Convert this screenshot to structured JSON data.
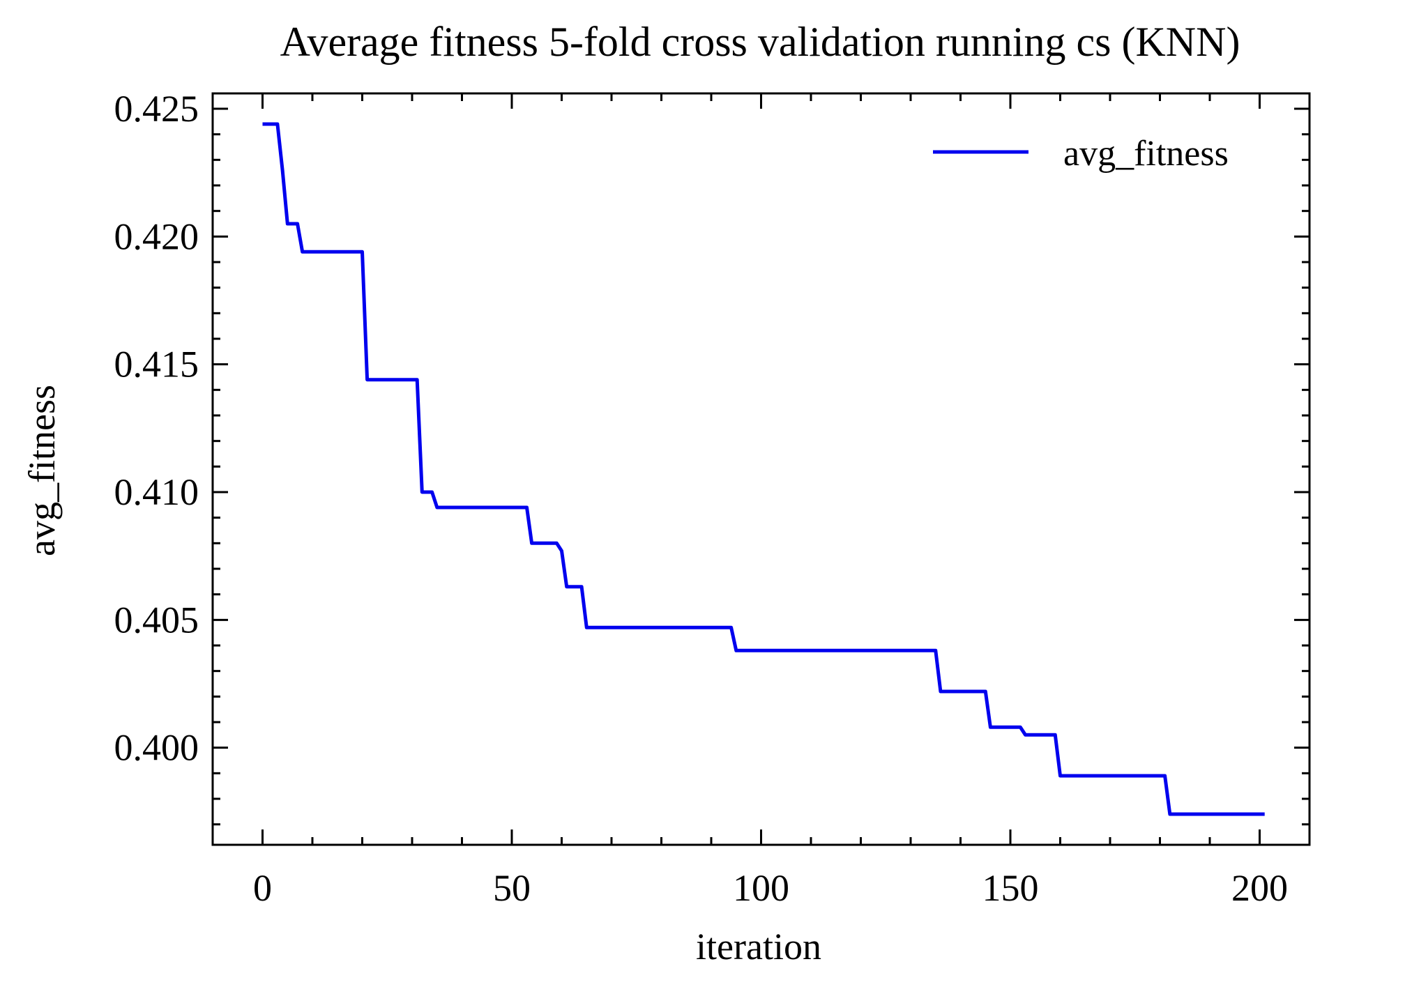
{
  "chart_data": {
    "type": "line",
    "title": "Average fitness 5-fold cross validation running cs (KNN)",
    "xlabel": "iteration",
    "ylabel": "avg_fitness",
    "xlim": [
      -10,
      210
    ],
    "ylim": [
      0.3962,
      0.4256
    ],
    "x_ticks": [
      0,
      50,
      100,
      150,
      200
    ],
    "x_tick_labels": [
      "0",
      "50",
      "100",
      "150",
      "200"
    ],
    "y_ticks": [
      0.4,
      0.405,
      0.41,
      0.415,
      0.42,
      0.425
    ],
    "y_tick_labels": [
      "0.400",
      "0.405",
      "0.410",
      "0.415",
      "0.420",
      "0.425"
    ],
    "grid": false,
    "legend": {
      "position": "top-right",
      "entries": [
        "avg_fitness"
      ]
    },
    "series": [
      {
        "name": "avg_fitness",
        "color": "#0000ee",
        "x": [
          0,
          3,
          4,
          5,
          7,
          8,
          9,
          20,
          21,
          31,
          32,
          34,
          35,
          53,
          54,
          59,
          60,
          61,
          64,
          65,
          94,
          95,
          135,
          136,
          145,
          146,
          152,
          153,
          159,
          160,
          181,
          182,
          201
        ],
        "values": [
          0.4244,
          0.4244,
          0.4226,
          0.4205,
          0.4205,
          0.4194,
          0.4194,
          0.4194,
          0.4144,
          0.4144,
          0.41,
          0.41,
          0.4094,
          0.4094,
          0.408,
          0.408,
          0.4077,
          0.4063,
          0.4063,
          0.4047,
          0.4047,
          0.4038,
          0.4038,
          0.4022,
          0.4022,
          0.4008,
          0.4008,
          0.4005,
          0.4005,
          0.3989,
          0.3989,
          0.3974,
          0.3974
        ]
      }
    ]
  }
}
